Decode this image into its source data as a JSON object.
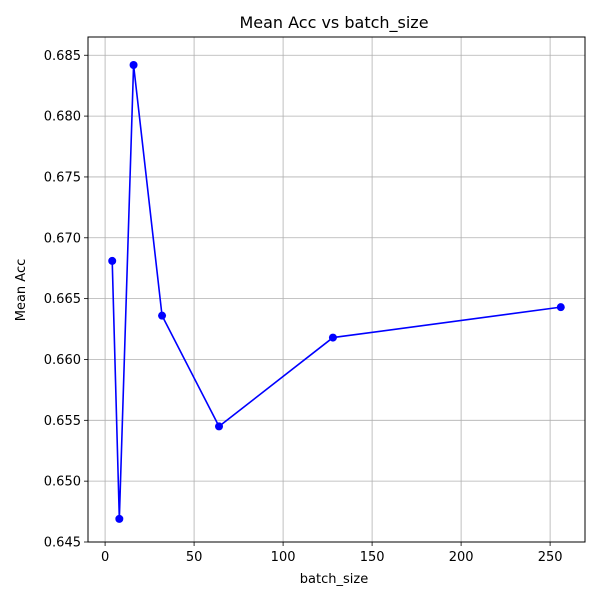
{
  "chart_data": {
    "type": "line",
    "title": "Mean Acc vs batch_size",
    "xlabel": "batch_size",
    "ylabel": "Mean Acc",
    "x": [
      4,
      8,
      16,
      32,
      64,
      128,
      256
    ],
    "series": [
      {
        "values": [
          0.6681,
          0.6469,
          0.6842,
          0.6636,
          0.6545,
          0.6618,
          0.6643
        ]
      }
    ],
    "xlim": [
      -9.6,
      269.6
    ],
    "ylim": [
      0.645,
      0.6865
    ],
    "xticks": [
      0,
      50,
      100,
      150,
      200,
      250
    ],
    "xtick_labels": [
      "0",
      "50",
      "100",
      "150",
      "200",
      "250"
    ],
    "yticks": [
      0.645,
      0.65,
      0.655,
      0.66,
      0.665,
      0.67,
      0.675,
      0.68,
      0.685
    ],
    "ytick_labels": [
      "0.645",
      "0.650",
      "0.655",
      "0.660",
      "0.665",
      "0.670",
      "0.675",
      "0.680",
      "0.685"
    ],
    "grid": true,
    "line_color": "#0000ff",
    "marker": "circle"
  }
}
